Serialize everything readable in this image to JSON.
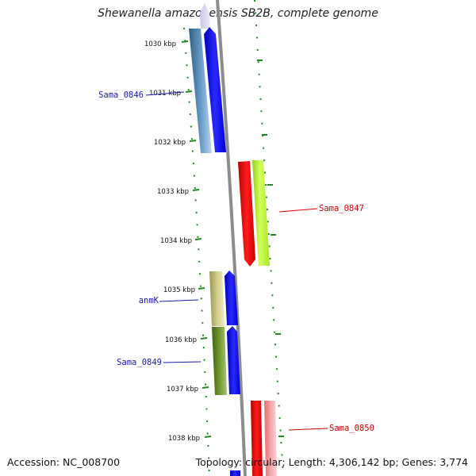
{
  "title": "Shewanella amazonensis SB2B, complete genome",
  "accession": "Accession: NC_008700",
  "summary": "Topology: circular; Length: 4,306,142 bp; Genes: 3,774",
  "colors": {
    "backbone": "#8c8c8c",
    "tick": "#1f8a1f",
    "forward_label": "#1a1aa6",
    "reverse_label": "#cc0000"
  },
  "ruler": [
    "1030 kbp",
    "1031 kbp",
    "1032 kbp",
    "1033 kbp",
    "1034 kbp",
    "1035 kbp",
    "1036 kbp",
    "1037 kbp",
    "1038 kbp"
  ],
  "features": [
    {
      "id": "top-partial",
      "strand": "+",
      "label": ""
    },
    {
      "id": "sama-0846",
      "strand": "+",
      "label": "Sama_0846"
    },
    {
      "id": "sama-0847",
      "strand": "-",
      "label": "Sama_0847"
    },
    {
      "id": "anmk",
      "strand": "+",
      "label": "anmK"
    },
    {
      "id": "sama-0849",
      "strand": "+",
      "label": "Sama_0849"
    },
    {
      "id": "sama-0850",
      "strand": "-",
      "label": "Sama_0850"
    },
    {
      "id": "bottom-partial",
      "strand": "+",
      "label": ""
    }
  ]
}
